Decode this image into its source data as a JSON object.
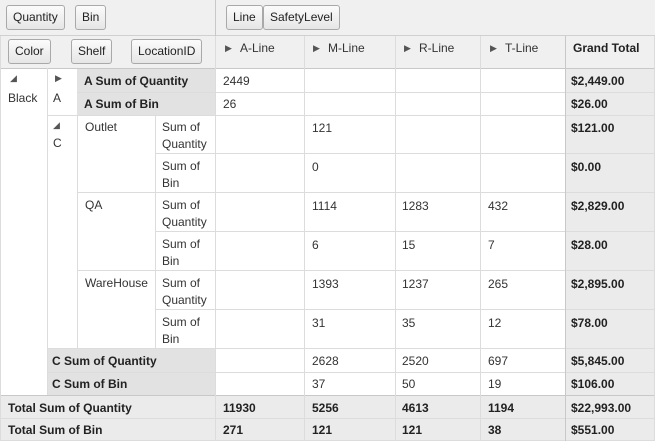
{
  "zones": {
    "data_fields": [
      "Quantity",
      "Bin"
    ],
    "column_fields": [
      "Line",
      "SafetyLevel"
    ],
    "row_fields": [
      "Color",
      "Shelf",
      "LocationID"
    ]
  },
  "columns": [
    "A-Line",
    "M-Line",
    "R-Line",
    "T-Line"
  ],
  "grand_total_label": "Grand Total",
  "rows": {
    "black": "Black",
    "a": "A",
    "a_qty_label": "A Sum of Quantity",
    "a_bin_label": "A Sum of Bin",
    "a_qty": [
      "2449",
      "",
      "",
      ""
    ],
    "a_qty_total": "$2,449.00",
    "a_bin": [
      "26",
      "",
      "",
      ""
    ],
    "a_bin_total": "$26.00",
    "c": "C",
    "locations": [
      {
        "name": "Outlet",
        "qty_label": "Sum of Quantity",
        "bin_label": "Sum of Bin",
        "qty": [
          "",
          "121",
          "",
          ""
        ],
        "qty_total": "$121.00",
        "bin": [
          "",
          "0",
          "",
          ""
        ],
        "bin_total": "$0.00"
      },
      {
        "name": "QA",
        "qty_label": "Sum of Quantity",
        "bin_label": "Sum of Bin",
        "qty": [
          "",
          "1114",
          "1283",
          "432"
        ],
        "qty_total": "$2,829.00",
        "bin": [
          "",
          "6",
          "15",
          "7"
        ],
        "bin_total": "$28.00"
      },
      {
        "name": "WareHouse",
        "qty_label": "Sum of Quantity",
        "bin_label": "Sum of Bin",
        "qty": [
          "",
          "1393",
          "1237",
          "265"
        ],
        "qty_total": "$2,895.00",
        "bin": [
          "",
          "31",
          "35",
          "12"
        ],
        "bin_total": "$78.00"
      }
    ],
    "c_qty_label": "C Sum of Quantity",
    "c_bin_label": "C Sum of Bin",
    "c_qty": [
      "",
      "2628",
      "2520",
      "697"
    ],
    "c_qty_total": "$5,845.00",
    "c_bin": [
      "",
      "37",
      "50",
      "19"
    ],
    "c_bin_total": "$106.00"
  },
  "totals": {
    "qty_label": "Total Sum of Quantity",
    "bin_label": "Total Sum of Bin",
    "qty": [
      "11930",
      "5256",
      "4613",
      "1194"
    ],
    "qty_total": "$22,993.00",
    "bin": [
      "271",
      "121",
      "121",
      "38"
    ],
    "bin_total": "$551.00"
  }
}
